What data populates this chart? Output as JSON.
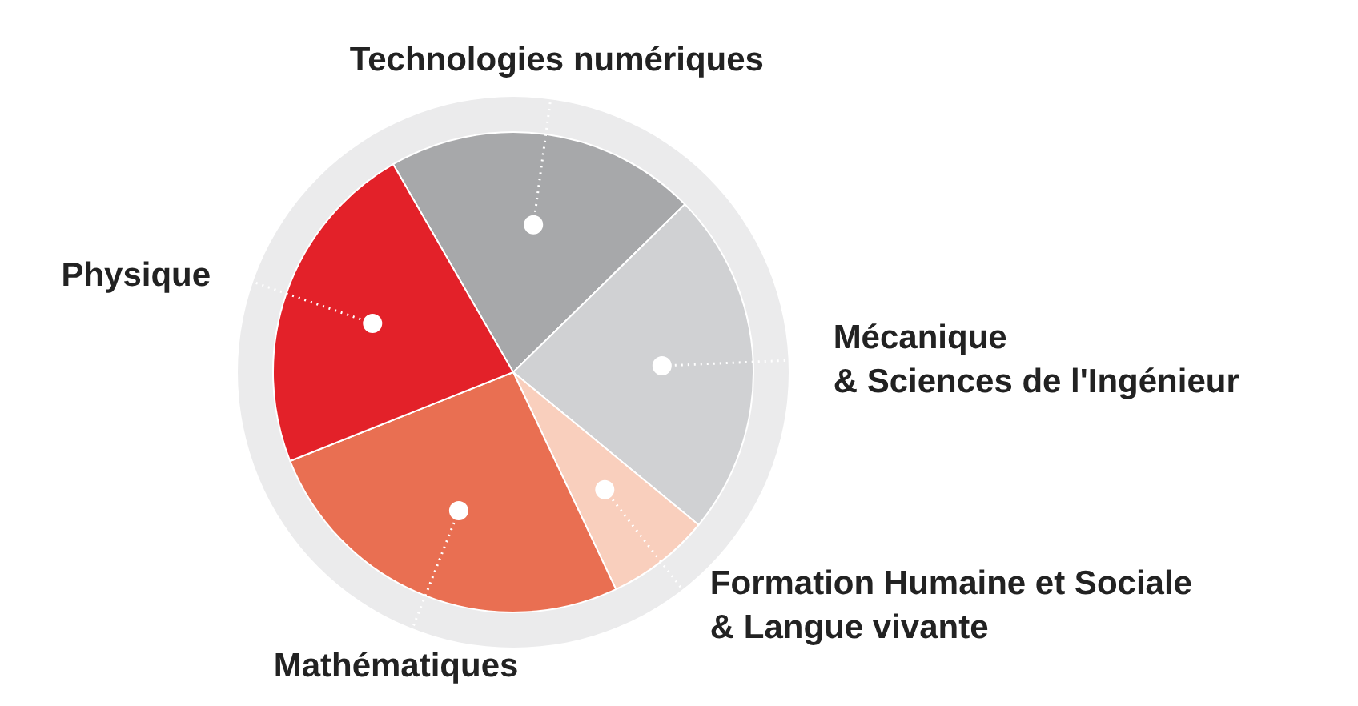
{
  "chart_data": {
    "type": "pie",
    "categories": [
      "Technologies numériques",
      "Mécanique\n& Sciences de l'Ingénieur",
      "Formation Humaine et Sociale\n& Langue vivante",
      "Mathématiques",
      "Physique"
    ],
    "values": [
      21,
      23.3,
      7,
      26,
      22.7
    ],
    "colors": [
      "#a7a8aa",
      "#d0d1d3",
      "#f9cfbd",
      "#e96f52",
      "#e32129"
    ]
  }
}
